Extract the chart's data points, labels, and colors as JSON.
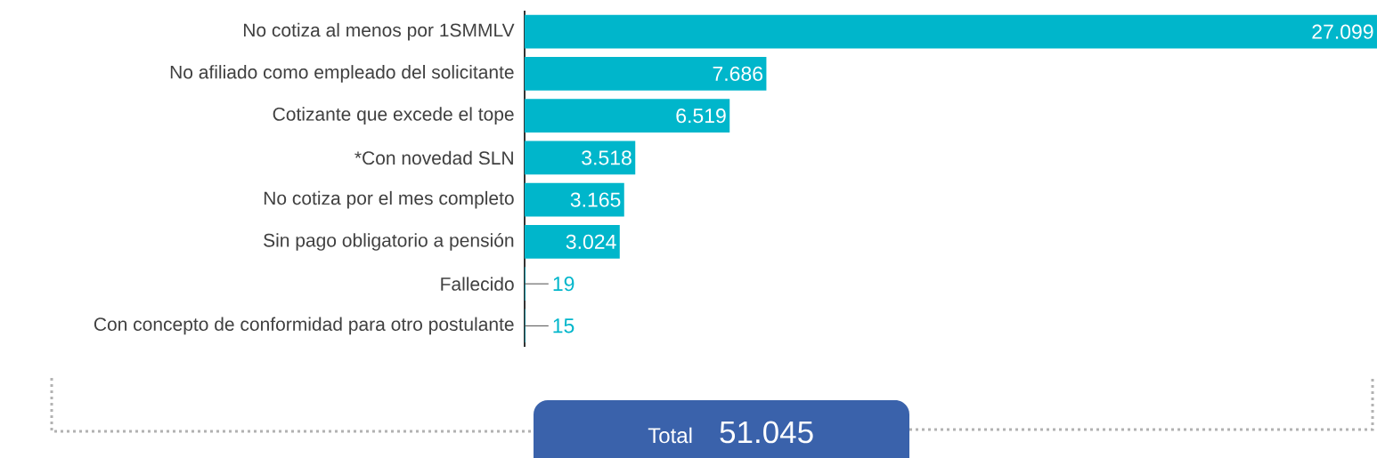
{
  "chart_data": {
    "type": "bar",
    "orientation": "horizontal",
    "color": "#00b6cb",
    "categories": [
      "No cotiza al menos por 1SMMLV",
      "No afiliado como empleado del solicitante",
      "Cotizante que excede el tope",
      "*Con novedad SLN",
      "No cotiza por el mes completo",
      "Sin pago obligatorio a pensión",
      "Fallecido",
      "Con concepto de conformidad para otro postulante"
    ],
    "values": [
      27099,
      7686,
      6519,
      3518,
      3165,
      3024,
      19,
      15
    ],
    "value_labels": [
      "27.099",
      "7.686",
      "6.519",
      "3.518",
      "3.165",
      "3.024",
      "19",
      "15"
    ],
    "annotations": [
      "Total",
      "51.045"
    ]
  }
}
